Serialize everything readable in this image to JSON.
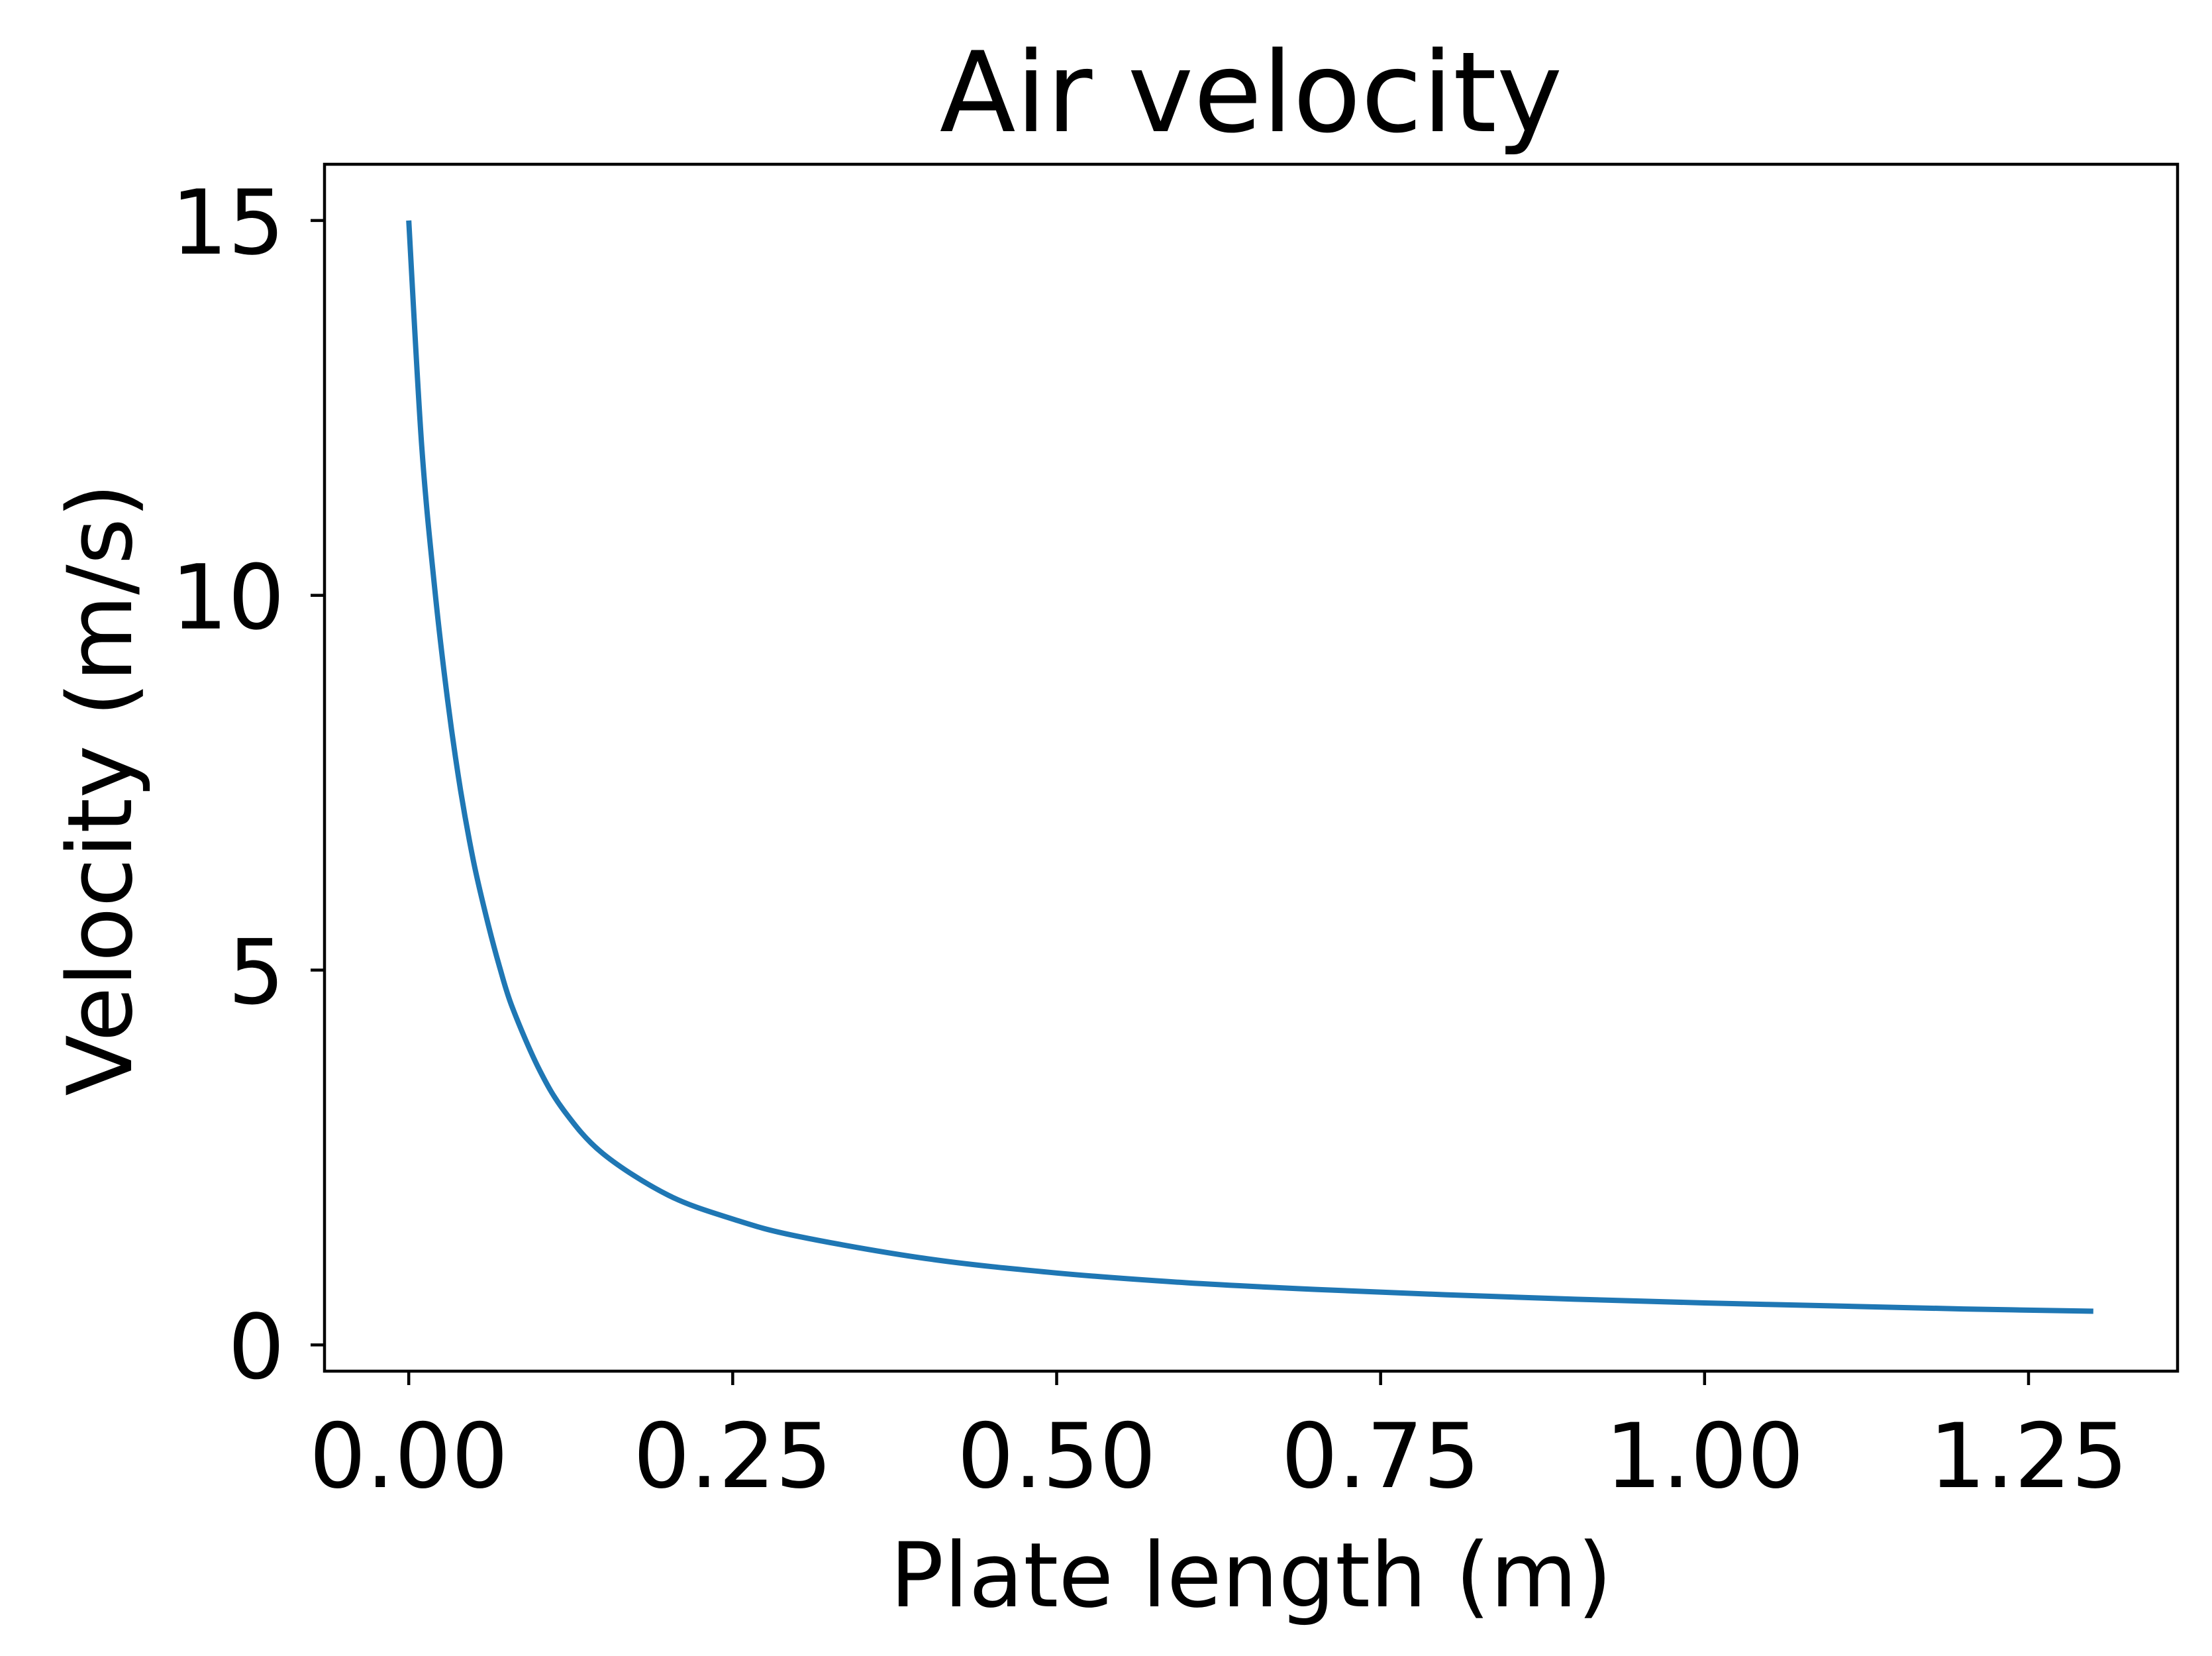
{
  "chart_data": {
    "type": "line",
    "title": "Air velocity",
    "xlabel": "Plate length (m)",
    "ylabel": "Velocity (m/s)",
    "xlim": [
      -0.065,
      1.365
    ],
    "ylim": [
      -0.35,
      15.75
    ],
    "xticks": [
      0.0,
      0.25,
      0.5,
      0.75,
      1.0,
      1.25
    ],
    "xtick_labels": [
      "0.00",
      "0.25",
      "0.50",
      "0.75",
      "1.00",
      "1.25"
    ],
    "yticks": [
      0,
      5,
      10,
      15
    ],
    "ytick_labels": [
      "0",
      "5",
      "10",
      "15"
    ],
    "grid": false,
    "legend": "none",
    "series": [
      {
        "color": "#1f77b4",
        "x": [
          0.0,
          0.01,
          0.02,
          0.03,
          0.04,
          0.05,
          0.06,
          0.07,
          0.08,
          0.1,
          0.12,
          0.15,
          0.2,
          0.25,
          0.3,
          0.4,
          0.5,
          0.6,
          0.7,
          0.8,
          0.9,
          1.0,
          1.1,
          1.2,
          1.3
        ],
        "y": [
          15.0,
          12.0,
          10.1,
          8.6,
          7.4,
          6.45,
          5.7,
          5.05,
          4.5,
          3.7,
          3.12,
          2.55,
          2.0,
          1.68,
          1.45,
          1.15,
          0.96,
          0.83,
          0.74,
          0.67,
          0.61,
          0.56,
          0.52,
          0.48,
          0.45
        ]
      }
    ]
  }
}
